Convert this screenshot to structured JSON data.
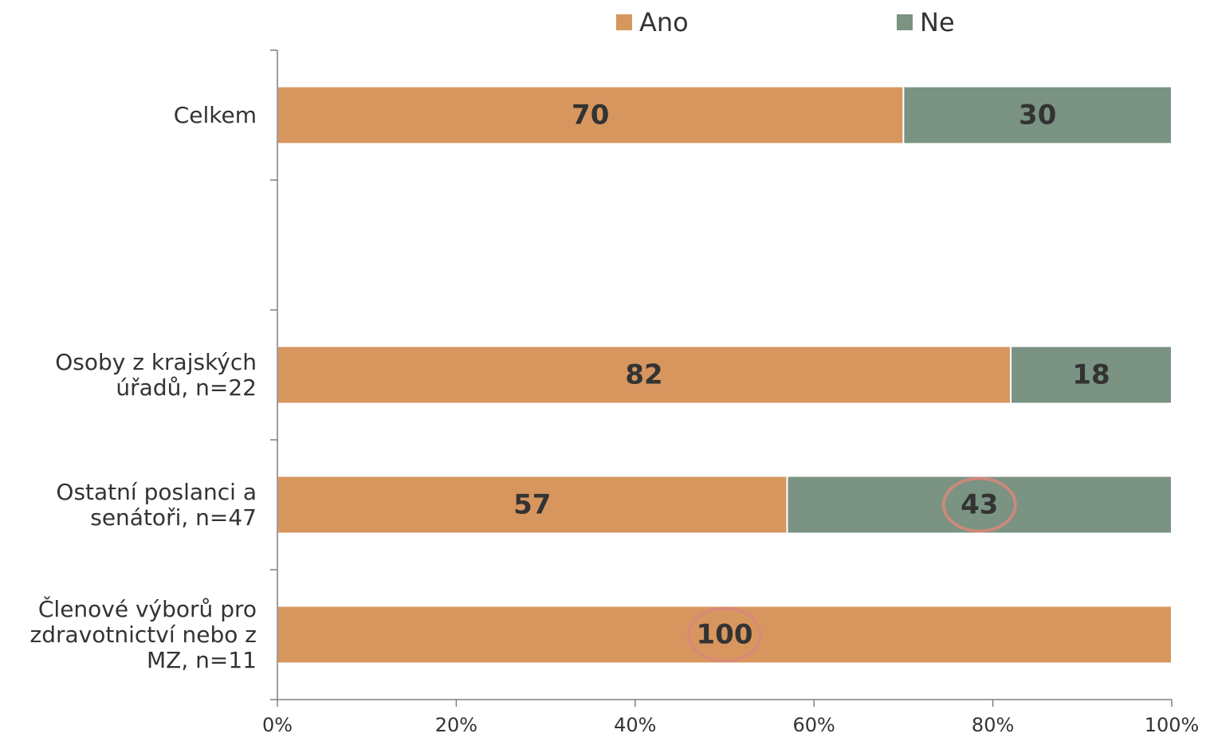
{
  "chart_data": {
    "type": "bar",
    "orientation": "horizontal",
    "stacked": true,
    "percent_scale": true,
    "categories": [
      [
        "Celkem"
      ],
      [],
      [
        "Osoby z krajských",
        "úřadů, n=22"
      ],
      [
        "Ostatní poslanci a",
        "senátoři, n=47"
      ],
      [
        "Členové výborů pro",
        "zdravotnictví nebo z",
        "MZ, n=11"
      ]
    ],
    "series": [
      {
        "name": "Ano",
        "color": "#d8965f",
        "values": [
          70,
          null,
          82,
          57,
          100
        ]
      },
      {
        "name": "Ne",
        "color": "#7a9383",
        "values": [
          30,
          null,
          18,
          43,
          0
        ]
      }
    ],
    "x_ticks": [
      "0%",
      "20%",
      "40%",
      "60%",
      "80%",
      "100%"
    ],
    "xlim": [
      0,
      100
    ],
    "legend_position": "top",
    "grid": false,
    "highlighted_values": [
      {
        "category_index": 3,
        "series": "Ne"
      },
      {
        "category_index": 4,
        "series": "Ano"
      }
    ],
    "highlight_color": "#d9877a"
  }
}
